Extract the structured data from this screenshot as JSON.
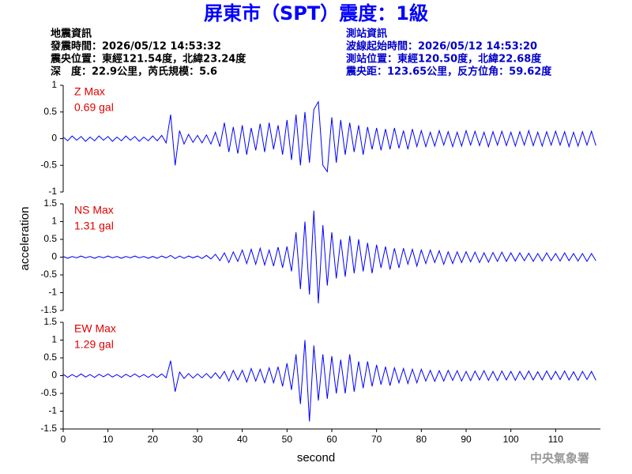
{
  "header": {
    "title": "屏東市（SPT）震度：1級",
    "event_info": [
      "地震資訊",
      "發震時間：2026/05/12 14:53:32",
      "震央位置：東經121.54度，北緯23.24度",
      "深　度：22.9公里，芮氏規模：5.6"
    ],
    "station_info": [
      "測站資訊",
      "波線起始時間：2026/05/12 14:53:20",
      "測站位置：東經120.50度，北緯22.68度",
      "震央距：123.65公里，反方位角：59.62度"
    ],
    "credit": "中央氣象署"
  },
  "chart_data": [
    {
      "type": "line",
      "annotation": [
        "Z Max",
        "0.69 gal"
      ],
      "color": "#0000ff",
      "x": [
        0,
        1,
        2,
        3,
        4,
        5,
        6,
        7,
        8,
        9,
        10,
        11,
        12,
        13,
        14,
        15,
        16,
        17,
        18,
        19,
        20,
        21,
        22,
        23,
        24,
        25,
        26,
        27,
        28,
        29,
        30,
        31,
        32,
        33,
        34,
        35,
        36,
        37,
        38,
        39,
        40,
        41,
        42,
        43,
        44,
        45,
        46,
        47,
        48,
        49,
        50,
        51,
        52,
        53,
        54,
        55,
        56,
        57,
        58,
        59,
        60,
        61,
        62,
        63,
        64,
        65,
        66,
        67,
        68,
        69,
        70,
        71,
        72,
        73,
        74,
        75,
        76,
        77,
        78,
        79,
        80,
        81,
        82,
        83,
        84,
        85,
        86,
        87,
        88,
        89,
        90,
        91,
        92,
        93,
        94,
        95,
        96,
        97,
        98,
        99,
        100,
        101,
        102,
        103,
        104,
        105,
        106,
        107,
        108,
        109,
        110,
        111,
        112,
        113,
        114,
        115,
        116,
        117,
        118,
        119
      ],
      "values": [
        0.03,
        -0.04,
        0.05,
        -0.03,
        0.04,
        -0.05,
        0.03,
        -0.04,
        0.05,
        -0.03,
        0.04,
        -0.05,
        0.03,
        -0.04,
        0.05,
        -0.03,
        0.04,
        -0.05,
        0.03,
        -0.04,
        0.05,
        -0.04,
        0.06,
        -0.08,
        0.45,
        -0.5,
        0.15,
        -0.1,
        0.08,
        -0.07,
        0.06,
        -0.08,
        0.07,
        -0.1,
        0.12,
        -0.15,
        0.3,
        -0.25,
        0.22,
        -0.28,
        0.25,
        -0.3,
        0.2,
        -0.22,
        0.28,
        -0.25,
        0.3,
        -0.2,
        0.25,
        -0.3,
        0.35,
        -0.4,
        0.45,
        -0.5,
        0.5,
        -0.45,
        0.55,
        0.69,
        -0.5,
        -0.62,
        0.4,
        -0.45,
        0.35,
        -0.3,
        0.3,
        -0.25,
        0.25,
        -0.3,
        0.22,
        -0.2,
        0.2,
        -0.22,
        0.18,
        -0.2,
        0.2,
        -0.18,
        0.15,
        -0.2,
        0.18,
        -0.15,
        0.15,
        -0.15,
        0.12,
        -0.14,
        0.15,
        -0.12,
        0.13,
        -0.15,
        0.12,
        -0.14,
        0.15,
        -0.12,
        0.14,
        -0.13,
        0.12,
        -0.15,
        0.13,
        -0.12,
        0.14,
        -0.13,
        0.12,
        -0.14,
        0.13,
        -0.12,
        0.15,
        -0.13,
        0.12,
        -0.14,
        0.13,
        -0.12,
        0.14,
        -0.12,
        0.13,
        -0.15,
        0.12,
        -0.14,
        0.13,
        -0.12,
        0.14,
        -0.13
      ],
      "xlim": [
        0,
        120
      ],
      "ylim": [
        -1,
        1
      ],
      "yticks": [
        -1,
        -0.5,
        0,
        0.5,
        1
      ]
    },
    {
      "type": "line",
      "annotation": [
        "NS Max",
        "1.31 gal"
      ],
      "color": "#0000ff",
      "ylabel": "acceleration",
      "x": [
        0,
        1,
        2,
        3,
        4,
        5,
        6,
        7,
        8,
        9,
        10,
        11,
        12,
        13,
        14,
        15,
        16,
        17,
        18,
        19,
        20,
        21,
        22,
        23,
        24,
        25,
        26,
        27,
        28,
        29,
        30,
        31,
        32,
        33,
        34,
        35,
        36,
        37,
        38,
        39,
        40,
        41,
        42,
        43,
        44,
        45,
        46,
        47,
        48,
        49,
        50,
        51,
        52,
        53,
        54,
        55,
        56,
        57,
        58,
        59,
        60,
        61,
        62,
        63,
        64,
        65,
        66,
        67,
        68,
        69,
        70,
        71,
        72,
        73,
        74,
        75,
        76,
        77,
        78,
        79,
        80,
        81,
        82,
        83,
        84,
        85,
        86,
        87,
        88,
        89,
        90,
        91,
        92,
        93,
        94,
        95,
        96,
        97,
        98,
        99,
        100,
        101,
        102,
        103,
        104,
        105,
        106,
        107,
        108,
        109,
        110,
        111,
        112,
        113,
        114,
        115,
        116,
        117,
        118,
        119
      ],
      "values": [
        0.02,
        -0.03,
        0.02,
        -0.02,
        0.03,
        -0.02,
        0.02,
        -0.03,
        0.02,
        -0.02,
        0.03,
        -0.02,
        0.02,
        -0.03,
        0.02,
        -0.02,
        0.03,
        -0.02,
        0.02,
        -0.03,
        0.02,
        -0.03,
        0.03,
        -0.02,
        0.05,
        -0.04,
        0.03,
        -0.03,
        0.03,
        -0.02,
        0.03,
        -0.04,
        0.05,
        -0.05,
        0.08,
        -0.1,
        0.12,
        -0.15,
        0.15,
        -0.12,
        0.2,
        -0.18,
        0.22,
        -0.2,
        0.25,
        -0.22,
        0.2,
        -0.25,
        0.28,
        -0.3,
        0.3,
        -0.4,
        0.7,
        -0.9,
        1.0,
        -1.05,
        1.31,
        -1.3,
        0.9,
        -0.8,
        0.7,
        -0.6,
        0.5,
        -0.55,
        0.6,
        -0.45,
        0.5,
        -0.4,
        0.4,
        -0.45,
        0.35,
        -0.3,
        0.3,
        -0.35,
        0.25,
        -0.3,
        0.25,
        -0.2,
        0.22,
        -0.25,
        0.2,
        -0.18,
        0.2,
        -0.15,
        0.18,
        -0.2,
        0.15,
        -0.18,
        0.15,
        -0.15,
        0.15,
        -0.13,
        0.14,
        -0.15,
        0.12,
        -0.14,
        0.13,
        -0.12,
        0.14,
        -0.12,
        0.12,
        -0.11,
        0.12,
        -0.1,
        0.11,
        -0.12,
        0.1,
        -0.11,
        0.12,
        -0.1,
        0.1,
        -0.11,
        0.12,
        -0.1,
        0.1,
        -0.11,
        0.1,
        -0.12,
        0.1,
        -0.1
      ],
      "xlim": [
        0,
        120
      ],
      "ylim": [
        -1.5,
        1.5
      ],
      "yticks": [
        -1.5,
        -1,
        -0.5,
        0,
        0.5,
        1,
        1.5
      ]
    },
    {
      "type": "line",
      "annotation": [
        "EW Max",
        "1.29 gal"
      ],
      "color": "#0000ff",
      "xlabel": "second",
      "x": [
        0,
        1,
        2,
        3,
        4,
        5,
        6,
        7,
        8,
        9,
        10,
        11,
        12,
        13,
        14,
        15,
        16,
        17,
        18,
        19,
        20,
        21,
        22,
        23,
        24,
        25,
        26,
        27,
        28,
        29,
        30,
        31,
        32,
        33,
        34,
        35,
        36,
        37,
        38,
        39,
        40,
        41,
        42,
        43,
        44,
        45,
        46,
        47,
        48,
        49,
        50,
        51,
        52,
        53,
        54,
        55,
        56,
        57,
        58,
        59,
        60,
        61,
        62,
        63,
        64,
        65,
        66,
        67,
        68,
        69,
        70,
        71,
        72,
        73,
        74,
        75,
        76,
        77,
        78,
        79,
        80,
        81,
        82,
        83,
        84,
        85,
        86,
        87,
        88,
        89,
        90,
        91,
        92,
        93,
        94,
        95,
        96,
        97,
        98,
        99,
        100,
        101,
        102,
        103,
        104,
        105,
        106,
        107,
        108,
        109,
        110,
        111,
        112,
        113,
        114,
        115,
        116,
        117,
        118,
        119
      ],
      "values": [
        0.04,
        -0.05,
        0.03,
        -0.04,
        0.05,
        -0.04,
        0.03,
        -0.05,
        0.04,
        -0.03,
        0.05,
        -0.04,
        0.03,
        -0.05,
        0.04,
        -0.03,
        0.05,
        -0.04,
        0.03,
        -0.05,
        0.04,
        -0.05,
        0.05,
        -0.06,
        0.42,
        -0.45,
        0.1,
        -0.08,
        0.06,
        -0.07,
        0.05,
        -0.06,
        0.06,
        -0.07,
        0.08,
        -0.08,
        0.12,
        -0.15,
        0.15,
        -0.12,
        0.15,
        -0.18,
        0.2,
        -0.15,
        0.18,
        -0.2,
        0.22,
        -0.2,
        0.25,
        -0.3,
        0.35,
        -0.4,
        0.6,
        -0.8,
        1.0,
        -1.29,
        0.85,
        -0.7,
        0.6,
        -0.65,
        0.55,
        -0.5,
        0.45,
        -0.5,
        0.6,
        -0.45,
        0.4,
        -0.35,
        0.4,
        -0.3,
        0.3,
        -0.25,
        0.25,
        -0.28,
        0.22,
        -0.2,
        0.2,
        -0.22,
        0.18,
        -0.2,
        0.18,
        -0.15,
        0.15,
        -0.16,
        0.14,
        -0.15,
        0.15,
        -0.13,
        0.14,
        -0.15,
        0.12,
        -0.14,
        0.13,
        -0.12,
        0.14,
        -0.13,
        0.12,
        -0.14,
        0.13,
        -0.12,
        0.12,
        -0.13,
        0.12,
        -0.11,
        0.13,
        -0.12,
        0.11,
        -0.12,
        0.13,
        -0.11,
        0.12,
        -0.11,
        0.13,
        -0.12,
        0.11,
        -0.13,
        0.12,
        -0.11,
        0.12,
        -0.13
      ],
      "xlim": [
        0,
        120
      ],
      "ylim": [
        -1.5,
        1.5
      ],
      "yticks": [
        -1.5,
        -1,
        -0.5,
        0,
        0.5,
        1,
        1.5
      ],
      "xticks": [
        0,
        10,
        20,
        30,
        40,
        50,
        60,
        70,
        80,
        90,
        100,
        110
      ]
    }
  ]
}
